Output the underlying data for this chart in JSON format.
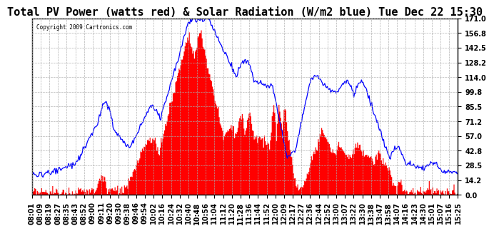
{
  "title": "Total PV Power (watts red) & Solar Radiation (W/m2 blue) Tue Dec 22 15:30",
  "copyright": "Copyright 2009 Cartronics.com",
  "y_ticks": [
    0.0,
    14.2,
    28.5,
    42.8,
    57.0,
    71.2,
    85.5,
    99.8,
    114.0,
    128.2,
    142.5,
    156.8,
    171.0
  ],
  "ylim": [
    0,
    171.0
  ],
  "x_labels": [
    "08:01",
    "08:09",
    "08:19",
    "08:27",
    "08:35",
    "08:43",
    "08:52",
    "09:00",
    "09:11",
    "09:20",
    "09:30",
    "09:38",
    "09:46",
    "09:54",
    "10:02",
    "10:16",
    "10:24",
    "10:32",
    "10:40",
    "10:48",
    "10:56",
    "11:04",
    "11:12",
    "11:20",
    "11:28",
    "11:36",
    "11:44",
    "11:52",
    "12:00",
    "12:09",
    "12:17",
    "12:27",
    "12:36",
    "12:44",
    "12:52",
    "13:00",
    "13:07",
    "13:22",
    "13:30",
    "13:38",
    "13:47",
    "13:58",
    "14:07",
    "14:16",
    "14:23",
    "14:30",
    "15:01",
    "15:07",
    "15:16",
    "15:25"
  ],
  "bg_color": "#ffffff",
  "grid_color": "#aaaaaa",
  "bar_color": "#ff0000",
  "line_color": "#0000ff",
  "title_fontsize": 11,
  "tick_fontsize": 7
}
